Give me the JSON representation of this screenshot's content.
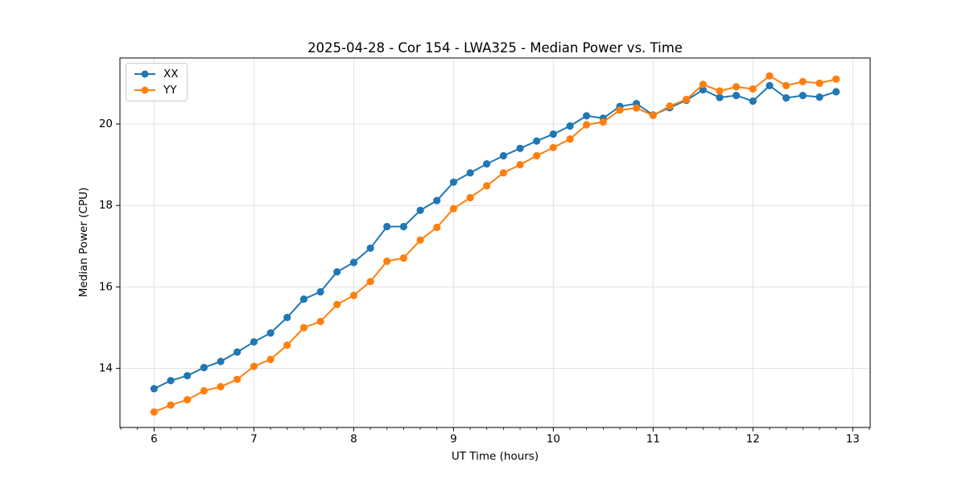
{
  "chart_data": {
    "type": "line",
    "title": "2025-04-28 - Cor 154 - LWA325 - Median Power vs. Time",
    "xlabel": "UT Time (hours)",
    "ylabel": "Median Power (CPU)",
    "x": [
      6,
      6.167,
      6.333,
      6.5,
      6.667,
      6.833,
      7,
      7.167,
      7.333,
      7.5,
      7.667,
      7.833,
      8,
      8.167,
      8.333,
      8.5,
      8.667,
      8.833,
      9,
      9.167,
      9.333,
      9.5,
      9.667,
      9.833,
      10,
      10.167,
      10.333,
      10.5,
      10.667,
      10.833,
      11,
      11.167,
      11.333,
      11.5,
      11.667,
      11.833,
      12,
      12.167,
      12.333,
      12.5,
      12.667,
      12.833
    ],
    "series": [
      {
        "name": "XX",
        "color": "#1f77b4",
        "values": [
          13.5,
          13.7,
          13.82,
          14.02,
          14.17,
          14.4,
          14.65,
          14.87,
          15.25,
          15.7,
          15.88,
          16.37,
          16.6,
          16.95,
          17.48,
          17.48,
          17.88,
          18.12,
          18.57,
          18.8,
          19.02,
          19.22,
          19.4,
          19.58,
          19.75,
          19.95,
          20.2,
          20.14,
          20.43,
          20.5,
          20.22,
          20.4,
          20.58,
          20.84,
          20.65,
          20.7,
          20.56,
          20.94,
          20.64,
          20.7,
          20.66,
          20.79
        ]
      },
      {
        "name": "YY",
        "color": "#ff7f0e",
        "values": [
          12.93,
          13.1,
          13.23,
          13.45,
          13.55,
          13.73,
          14.05,
          14.22,
          14.57,
          15.0,
          15.15,
          15.57,
          15.79,
          16.13,
          16.63,
          16.71,
          17.15,
          17.46,
          17.92,
          18.19,
          18.48,
          18.8,
          19.0,
          19.22,
          19.42,
          19.63,
          19.98,
          20.05,
          20.34,
          20.39,
          20.21,
          20.44,
          20.6,
          20.97,
          20.81,
          20.91,
          20.86,
          21.18,
          20.94,
          21.04,
          21.0,
          21.1
        ]
      }
    ],
    "xticks": {
      "values": [
        6,
        7,
        8,
        9,
        10,
        11,
        12,
        13
      ],
      "labels": [
        "6",
        "7",
        "8",
        "9",
        "10",
        "11",
        "12",
        "13"
      ]
    },
    "yticks": {
      "values": [
        14,
        16,
        18,
        20
      ],
      "labels": [
        "14",
        "16",
        "18",
        "20"
      ]
    },
    "xlim": [
      5.658,
      13.175
    ],
    "ylim": [
      12.55,
      21.62
    ],
    "minor_tick_step_x": 0.16667,
    "grid": true,
    "legend": {
      "position": "upper-left",
      "entries": [
        "XX",
        "YY"
      ]
    }
  },
  "colors": {
    "series_xx": "#1f77b4",
    "series_yy": "#ff7f0e",
    "grid": "#e0e0e0",
    "spine": "#000000"
  }
}
